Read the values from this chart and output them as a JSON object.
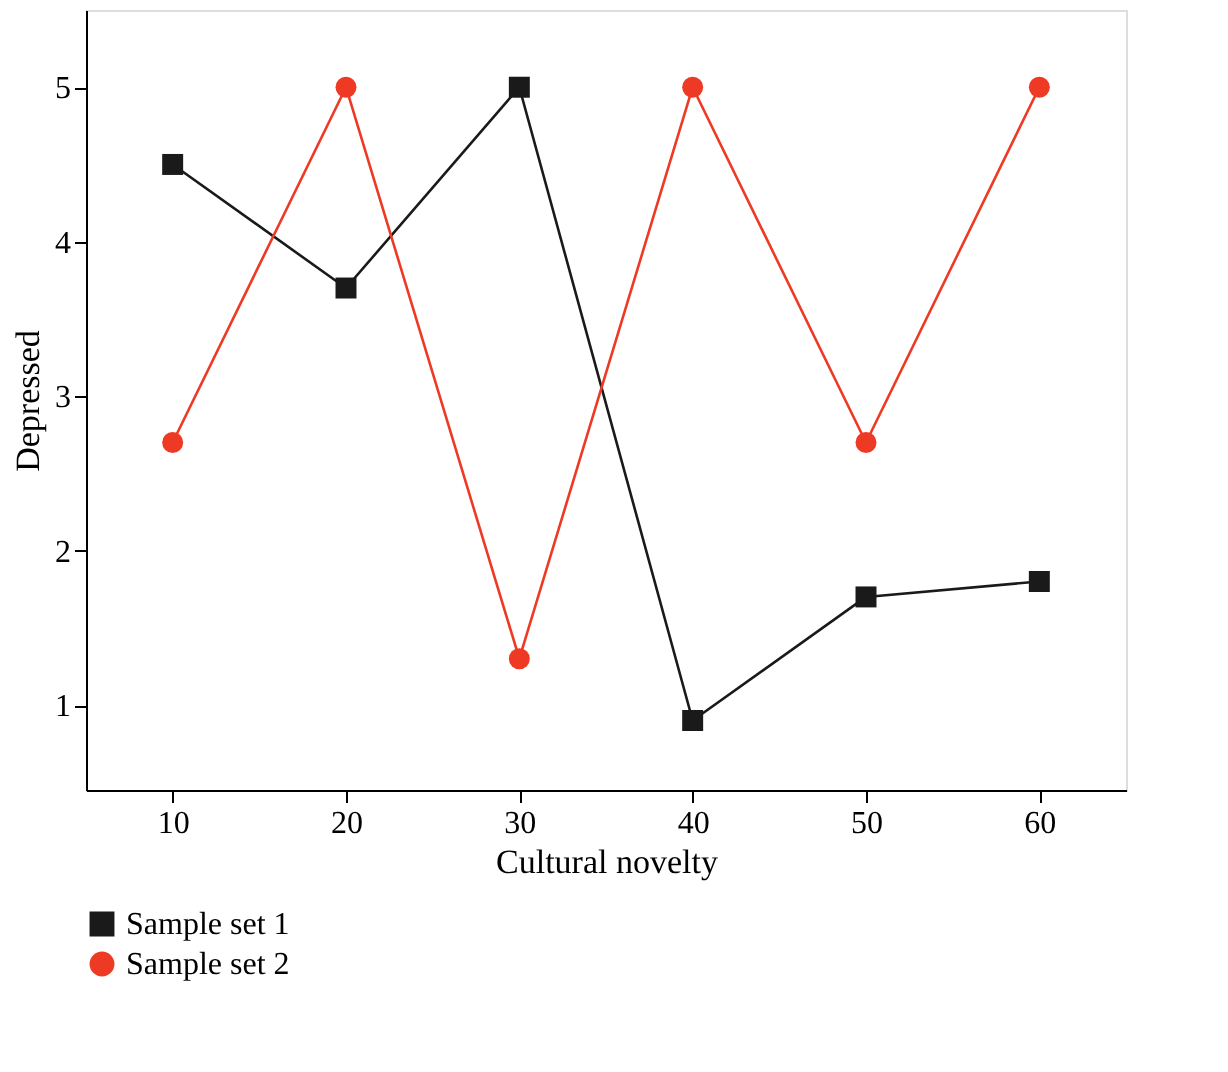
{
  "chart_data": {
    "type": "line",
    "xlabel": "Cultural novelty",
    "ylabel": "Depressed",
    "x": [
      10,
      20,
      30,
      40,
      50,
      60
    ],
    "series": [
      {
        "name": "Sample set 1",
        "color": "#1a1a1a",
        "marker": "square",
        "values": [
          4.5,
          3.7,
          5.0,
          0.9,
          1.7,
          1.8
        ]
      },
      {
        "name": "Sample set 2",
        "color": "#ee3a24",
        "marker": "circle",
        "values": [
          2.7,
          5.0,
          1.3,
          5.0,
          2.7,
          5.0
        ]
      }
    ],
    "xlim": [
      5,
      65
    ],
    "xticks": [
      10,
      20,
      30,
      40,
      50,
      60
    ],
    "ylim": [
      0.45,
      5.5
    ],
    "yticks": [
      1,
      2,
      3,
      4,
      5
    ],
    "grid": false,
    "legend": "bottom left",
    "line_style": "solid"
  }
}
